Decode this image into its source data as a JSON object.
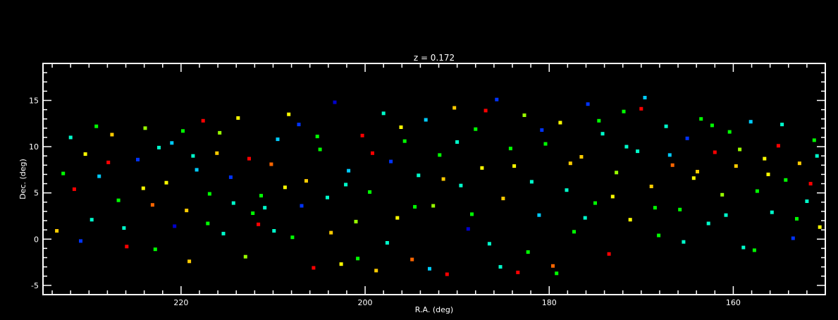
{
  "chart_data": {
    "type": "scatter",
    "title": "z = 0.172",
    "xlabel": "R.A. (deg)",
    "ylabel": "Dec. (deg)",
    "xlim": [
      235,
      150
    ],
    "ylim": [
      -6,
      19
    ],
    "x_ticks": [
      {
        "value": 220,
        "label": "220"
      },
      {
        "value": 200,
        "label": "200"
      },
      {
        "value": 180,
        "label": "180"
      },
      {
        "value": 160,
        "label": "160"
      }
    ],
    "y_ticks": [
      {
        "value": 15,
        "label": "15"
      },
      {
        "value": 10,
        "label": "10"
      },
      {
        "value": 5,
        "label": "5"
      },
      {
        "value": 0,
        "label": "0"
      },
      {
        "value": -5,
        "label": "-5"
      }
    ],
    "marker": "square",
    "colors": [
      "#ff0000",
      "#ff6600",
      "#ffcc00",
      "#ffff00",
      "#99ff00",
      "#00ff00",
      "#00ffcc",
      "#00ccff",
      "#0033ff",
      "#0000cc"
    ],
    "grid": false,
    "legend": "none",
    "points": [
      [
        232.8,
        7.1,
        5
      ],
      [
        231.6,
        5.4,
        0
      ],
      [
        230.4,
        9.2,
        3
      ],
      [
        229.7,
        2.1,
        6
      ],
      [
        228.9,
        6.8,
        7
      ],
      [
        227.5,
        11.3,
        2
      ],
      [
        226.8,
        4.2,
        5
      ],
      [
        225.9,
        -0.8,
        0
      ],
      [
        224.7,
        8.6,
        8
      ],
      [
        223.9,
        12.0,
        4
      ],
      [
        223.1,
        3.7,
        1
      ],
      [
        222.4,
        9.9,
        6
      ],
      [
        221.6,
        6.1,
        3
      ],
      [
        220.7,
        1.4,
        9
      ],
      [
        219.8,
        11.7,
        5
      ],
      [
        219.1,
        -2.4,
        2
      ],
      [
        218.3,
        7.5,
        7
      ],
      [
        217.6,
        12.8,
        0
      ],
      [
        216.9,
        4.9,
        5
      ],
      [
        216.1,
        9.3,
        2
      ],
      [
        215.4,
        0.6,
        6
      ],
      [
        214.6,
        6.7,
        8
      ],
      [
        213.8,
        13.1,
        3
      ],
      [
        213.0,
        -1.9,
        4
      ],
      [
        212.2,
        2.8,
        5
      ],
      [
        211.6,
        1.6,
        0
      ],
      [
        210.9,
        3.4,
        6
      ],
      [
        210.2,
        8.1,
        1
      ],
      [
        209.5,
        10.8,
        7
      ],
      [
        208.7,
        5.6,
        3
      ],
      [
        207.9,
        0.2,
        5
      ],
      [
        207.2,
        12.4,
        8
      ],
      [
        206.4,
        6.3,
        2
      ],
      [
        205.6,
        -3.1,
        0
      ],
      [
        204.9,
        9.7,
        5
      ],
      [
        204.1,
        4.5,
        6
      ],
      [
        203.3,
        14.8,
        9
      ],
      [
        202.6,
        -2.7,
        3
      ],
      [
        201.8,
        7.4,
        7
      ],
      [
        201.0,
        1.9,
        4
      ],
      [
        200.3,
        11.2,
        0
      ],
      [
        199.5,
        5.1,
        5
      ],
      [
        198.8,
        -3.4,
        2
      ],
      [
        198.0,
        13.6,
        6
      ],
      [
        197.2,
        8.4,
        8
      ],
      [
        196.5,
        2.3,
        3
      ],
      [
        195.7,
        10.6,
        5
      ],
      [
        194.9,
        -2.2,
        1
      ],
      [
        194.2,
        6.9,
        6
      ],
      [
        193.4,
        12.9,
        7
      ],
      [
        192.6,
        3.6,
        4
      ],
      [
        191.9,
        9.1,
        5
      ],
      [
        191.1,
        -3.8,
        0
      ],
      [
        190.3,
        14.2,
        2
      ],
      [
        189.6,
        5.8,
        6
      ],
      [
        188.8,
        1.1,
        9
      ],
      [
        188.0,
        11.9,
        5
      ],
      [
        187.3,
        7.7,
        3
      ],
      [
        186.5,
        -0.5,
        6
      ],
      [
        185.7,
        15.1,
        8
      ],
      [
        185.0,
        4.4,
        2
      ],
      [
        184.2,
        9.8,
        5
      ],
      [
        183.4,
        -3.6,
        0
      ],
      [
        182.7,
        13.4,
        4
      ],
      [
        181.9,
        6.2,
        6
      ],
      [
        181.1,
        2.6,
        7
      ],
      [
        180.4,
        10.3,
        5
      ],
      [
        179.6,
        -2.9,
        1
      ],
      [
        178.8,
        12.6,
        3
      ],
      [
        178.1,
        5.3,
        6
      ],
      [
        177.3,
        0.8,
        5
      ],
      [
        176.5,
        8.9,
        2
      ],
      [
        175.8,
        14.6,
        8
      ],
      [
        175.0,
        3.9,
        5
      ],
      [
        174.2,
        11.4,
        6
      ],
      [
        173.5,
        -1.6,
        0
      ],
      [
        172.7,
        7.2,
        4
      ],
      [
        171.9,
        13.8,
        5
      ],
      [
        171.2,
        2.1,
        3
      ],
      [
        170.4,
        9.5,
        6
      ],
      [
        169.6,
        15.3,
        7
      ],
      [
        168.9,
        5.7,
        2
      ],
      [
        168.1,
        0.4,
        5
      ],
      [
        167.3,
        12.2,
        6
      ],
      [
        166.6,
        8.0,
        1
      ],
      [
        165.8,
        3.2,
        5
      ],
      [
        165.0,
        10.9,
        8
      ],
      [
        164.3,
        6.6,
        3
      ],
      [
        163.5,
        13.0,
        5
      ],
      [
        162.7,
        1.7,
        6
      ],
      [
        162.0,
        9.4,
        0
      ],
      [
        161.2,
        4.8,
        4
      ],
      [
        160.4,
        11.6,
        5
      ],
      [
        159.7,
        7.9,
        2
      ],
      [
        158.9,
        -0.9,
        6
      ],
      [
        158.1,
        12.7,
        7
      ],
      [
        157.4,
        5.2,
        5
      ],
      [
        156.6,
        8.7,
        3
      ],
      [
        155.8,
        2.9,
        6
      ],
      [
        155.1,
        10.1,
        0
      ],
      [
        154.3,
        6.4,
        5
      ],
      [
        153.5,
        0.1,
        8
      ],
      [
        152.8,
        8.2,
        2
      ],
      [
        152.0,
        4.1,
        6
      ],
      [
        151.2,
        10.7,
        5
      ],
      [
        150.6,
        1.3,
        3
      ],
      [
        233.5,
        0.9,
        2
      ],
      [
        232.0,
        11.0,
        6
      ],
      [
        230.9,
        -0.2,
        8
      ],
      [
        229.2,
        12.2,
        5
      ],
      [
        227.9,
        8.3,
        0
      ],
      [
        226.2,
        1.2,
        6
      ],
      [
        224.1,
        5.5,
        3
      ],
      [
        222.8,
        -1.1,
        5
      ],
      [
        221.0,
        10.4,
        7
      ],
      [
        219.4,
        3.1,
        2
      ],
      [
        218.7,
        9.0,
        6
      ],
      [
        217.1,
        1.7,
        5
      ],
      [
        215.8,
        11.5,
        4
      ],
      [
        214.3,
        3.9,
        6
      ],
      [
        212.6,
        8.7,
        0
      ],
      [
        211.3,
        4.7,
        5
      ],
      [
        209.9,
        0.9,
        6
      ],
      [
        208.3,
        13.5,
        3
      ],
      [
        206.9,
        3.6,
        8
      ],
      [
        205.2,
        11.1,
        5
      ],
      [
        203.7,
        0.7,
        2
      ],
      [
        202.1,
        5.9,
        6
      ],
      [
        200.8,
        -2.1,
        5
      ],
      [
        199.2,
        9.3,
        0
      ],
      [
        197.6,
        -0.4,
        6
      ],
      [
        196.1,
        12.1,
        3
      ],
      [
        194.6,
        3.5,
        5
      ],
      [
        193.0,
        -3.2,
        7
      ],
      [
        191.5,
        6.5,
        2
      ],
      [
        190.0,
        10.5,
        6
      ],
      [
        188.4,
        2.7,
        5
      ],
      [
        186.9,
        13.9,
        0
      ],
      [
        185.3,
        -3.0,
        6
      ],
      [
        183.8,
        7.9,
        3
      ],
      [
        182.3,
        -1.4,
        5
      ],
      [
        180.8,
        11.8,
        8
      ],
      [
        179.2,
        -3.7,
        5
      ],
      [
        177.7,
        8.2,
        2
      ],
      [
        176.1,
        2.3,
        6
      ],
      [
        174.6,
        12.8,
        5
      ],
      [
        173.1,
        4.6,
        3
      ],
      [
        171.6,
        10.0,
        6
      ],
      [
        170.0,
        14.1,
        0
      ],
      [
        168.5,
        3.4,
        5
      ],
      [
        166.9,
        9.1,
        7
      ],
      [
        165.4,
        -0.3,
        6
      ],
      [
        163.9,
        7.3,
        2
      ],
      [
        162.3,
        12.3,
        5
      ],
      [
        160.8,
        2.6,
        6
      ],
      [
        159.3,
        9.7,
        4
      ],
      [
        157.7,
        -1.2,
        5
      ],
      [
        156.2,
        7.0,
        3
      ],
      [
        154.7,
        12.4,
        6
      ],
      [
        153.1,
        2.2,
        5
      ],
      [
        151.6,
        6.0,
        0
      ],
      [
        150.9,
        9.0,
        6
      ]
    ]
  }
}
